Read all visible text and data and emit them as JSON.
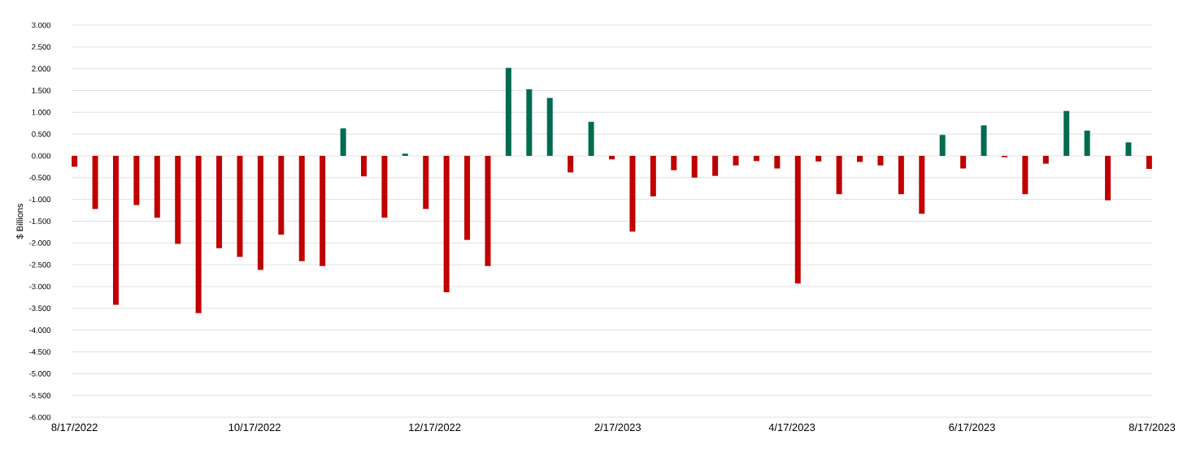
{
  "chart_data": {
    "type": "bar",
    "ylabel": "$ Billions",
    "x": [
      "2022-08-17",
      "2022-08-24",
      "2022-08-31",
      "2022-09-07",
      "2022-09-14",
      "2022-09-21",
      "2022-09-28",
      "2022-10-05",
      "2022-10-12",
      "2022-10-19",
      "2022-10-26",
      "2022-11-02",
      "2022-11-09",
      "2022-11-16",
      "2022-11-23",
      "2022-11-30",
      "2022-12-07",
      "2022-12-14",
      "2022-12-21",
      "2022-12-28",
      "2023-01-04",
      "2023-01-11",
      "2023-01-18",
      "2023-01-25",
      "2023-02-01",
      "2023-02-08",
      "2023-02-15",
      "2023-02-22",
      "2023-03-01",
      "2023-03-08",
      "2023-03-15",
      "2023-03-22",
      "2023-03-29",
      "2023-04-05",
      "2023-04-12",
      "2023-04-19",
      "2023-04-26",
      "2023-05-03",
      "2023-05-10",
      "2023-05-17",
      "2023-05-24",
      "2023-05-31",
      "2023-06-07",
      "2023-06-14",
      "2023-06-21",
      "2023-06-28",
      "2023-07-05",
      "2023-07-12",
      "2023-07-19",
      "2023-07-26",
      "2023-08-02",
      "2023-08-09",
      "2023-08-16"
    ],
    "values": [
      -0.25,
      -1.22,
      -3.42,
      -1.13,
      -1.42,
      -2.02,
      -3.61,
      -2.12,
      -2.32,
      -2.62,
      -1.81,
      -2.42,
      -2.53,
      0.63,
      -0.47,
      -1.42,
      0.05,
      -1.22,
      -3.13,
      -1.93,
      -2.53,
      2.02,
      1.53,
      1.33,
      -0.38,
      0.78,
      -0.08,
      -1.74,
      -0.93,
      -0.33,
      -0.5,
      -0.46,
      -0.22,
      -0.12,
      -0.29,
      -2.93,
      -0.13,
      -0.88,
      -0.14,
      -0.22,
      -0.88,
      -1.33,
      0.48,
      -0.29,
      0.7,
      -0.03,
      -0.88,
      -0.18,
      1.03,
      0.58,
      -1.02,
      0.31,
      -0.3
    ],
    "colors": [
      "#c00000",
      "#c00000",
      "#c00000",
      "#c00000",
      "#c00000",
      "#c00000",
      "#c00000",
      "#c00000",
      "#c00000",
      "#c00000",
      "#c00000",
      "#c00000",
      "#c00000",
      "#006b4f",
      "#c00000",
      "#c00000",
      "#006b4f",
      "#c00000",
      "#c00000",
      "#c00000",
      "#c00000",
      "#006b4f",
      "#006b4f",
      "#006b4f",
      "#c00000",
      "#006b4f",
      "#c00000",
      "#c00000",
      "#c00000",
      "#c00000",
      "#c00000",
      "#c00000",
      "#c00000",
      "#c00000",
      "#c00000",
      "#c00000",
      "#c00000",
      "#c00000",
      "#c00000",
      "#c00000",
      "#c00000",
      "#c00000",
      "#006b4f",
      "#c00000",
      "#006b4f",
      "#c00000",
      "#c00000",
      "#c00000",
      "#006b4f",
      "#006b4f",
      "#c00000",
      "#006b4f",
      "#c00000"
    ],
    "xlim": [
      "2022-08-16",
      "2023-08-17"
    ],
    "xticks": [
      {
        "value": "2022-08-17",
        "label": "8/17/2022"
      },
      {
        "value": "2022-10-17",
        "label": "10/17/2022"
      },
      {
        "value": "2022-12-17",
        "label": "12/17/2022"
      },
      {
        "value": "2023-02-17",
        "label": "2/17/2023"
      },
      {
        "value": "2023-04-17",
        "label": "4/17/2023"
      },
      {
        "value": "2023-06-17",
        "label": "6/17/2023"
      },
      {
        "value": "2023-08-17",
        "label": "8/17/2023"
      }
    ],
    "ylim": [
      -6,
      3
    ],
    "yticks": [
      {
        "value": -6,
        "label": "-6.000"
      },
      {
        "value": -5.5,
        "label": "-5.500"
      },
      {
        "value": -5,
        "label": "-5.000"
      },
      {
        "value": -4.5,
        "label": "-4.500"
      },
      {
        "value": -4,
        "label": "-4.000"
      },
      {
        "value": -3.5,
        "label": "-3.500"
      },
      {
        "value": -3,
        "label": "-3.000"
      },
      {
        "value": -2.5,
        "label": "-2.500"
      },
      {
        "value": -2,
        "label": "-2.000"
      },
      {
        "value": -1.5,
        "label": "-1.500"
      },
      {
        "value": -1,
        "label": "-1.000"
      },
      {
        "value": -0.5,
        "label": "-0.500"
      },
      {
        "value": 0,
        "label": "0.000"
      },
      {
        "value": 0.5,
        "label": "0.500"
      },
      {
        "value": 1,
        "label": "1.000"
      },
      {
        "value": 1.5,
        "label": "1.500"
      },
      {
        "value": 2,
        "label": "2.000"
      },
      {
        "value": 2.5,
        "label": "2.500"
      },
      {
        "value": 3,
        "label": "3.000"
      }
    ],
    "grid": "y"
  }
}
